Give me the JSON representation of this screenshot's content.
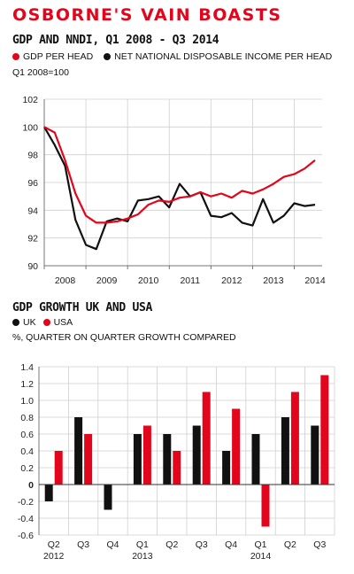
{
  "title": "OSBORNE'S VAIN BOASTS",
  "colors": {
    "red": "#e3051b",
    "black": "#111111",
    "grid": "#cfcfcf"
  },
  "chart_data": [
    {
      "type": "line",
      "title": "GDP AND NNDI, Q1 2008 - Q3 2014",
      "ylabel": "Q1 2008=100",
      "ylim": [
        90,
        102
      ],
      "yticks": [
        90,
        92,
        94,
        96,
        98,
        100,
        102
      ],
      "xlim": [
        2008,
        2014.67
      ],
      "xticks": [
        2008,
        2009,
        2010,
        2011,
        2012,
        2013,
        2014
      ],
      "legend_placement": "top-left",
      "grid": true,
      "series": [
        {
          "name": "GDP PER HEAD",
          "color": "#e3051b",
          "x": [
            2008,
            2008.25,
            2008.5,
            2008.75,
            2009,
            2009.25,
            2009.5,
            2009.75,
            2010,
            2010.25,
            2010.5,
            2010.75,
            2011,
            2011.25,
            2011.5,
            2011.75,
            2012,
            2012.25,
            2012.5,
            2012.75,
            2013,
            2013.25,
            2013.5,
            2013.75,
            2014,
            2014.25,
            2014.5
          ],
          "y": [
            100,
            99.6,
            97.6,
            95.2,
            93.6,
            93.1,
            93.1,
            93.2,
            93.4,
            93.7,
            94.4,
            94.7,
            94.6,
            94.9,
            95.0,
            95.3,
            95.0,
            95.2,
            94.9,
            95.4,
            95.2,
            95.5,
            95.9,
            96.4,
            96.6,
            97.0,
            97.6
          ]
        },
        {
          "name": "NET NATIONAL DISPOSABLE INCOME PER HEAD",
          "color": "#111111",
          "x": [
            2008,
            2008.25,
            2008.5,
            2008.75,
            2009,
            2009.25,
            2009.5,
            2009.75,
            2010,
            2010.25,
            2010.5,
            2010.75,
            2011,
            2011.25,
            2011.5,
            2011.75,
            2012,
            2012.25,
            2012.5,
            2012.75,
            2013,
            2013.25,
            2013.5,
            2013.75,
            2014,
            2014.25,
            2014.5
          ],
          "y": [
            100,
            98.7,
            97.2,
            93.3,
            91.5,
            91.2,
            93.2,
            93.4,
            93.2,
            94.7,
            94.8,
            95.0,
            94.2,
            95.9,
            95.0,
            95.3,
            93.6,
            93.5,
            93.8,
            93.1,
            92.9,
            94.8,
            93.1,
            93.6,
            94.5,
            94.3,
            94.4
          ]
        }
      ]
    },
    {
      "type": "bar",
      "title": "GDP GROWTH UK AND USA",
      "ylabel": "%, QUARTER ON QUARTER GROWTH COMPARED",
      "ylim": [
        -0.6,
        1.4
      ],
      "yticks": [
        "-0.6",
        "-0.4",
        "-0.2",
        "0",
        "0.2",
        "0.4",
        "0.6",
        "0.8",
        "1.0",
        "1.2",
        "1.4"
      ],
      "categories": [
        "Q2",
        "Q3",
        "Q4",
        "Q1",
        "Q2",
        "Q3",
        "Q4",
        "Q1",
        "Q2",
        "Q3"
      ],
      "category_years": [
        "2012",
        "",
        "",
        "2013",
        "",
        "",
        "",
        "2014",
        "",
        ""
      ],
      "legend_placement": "top-left",
      "grid": true,
      "series": [
        {
          "name": "UK",
          "color": "#111111",
          "values": [
            -0.2,
            0.8,
            -0.3,
            0.6,
            0.6,
            0.7,
            0.4,
            0.6,
            0.8,
            0.7
          ]
        },
        {
          "name": "USA",
          "color": "#e3051b",
          "values": [
            0.4,
            0.6,
            null,
            0.7,
            0.4,
            1.1,
            0.9,
            -0.5,
            1.1,
            1.3
          ]
        }
      ]
    }
  ]
}
